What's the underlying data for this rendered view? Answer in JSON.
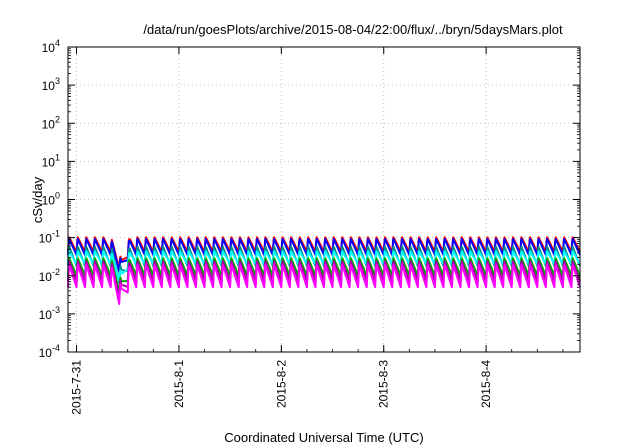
{
  "chart_data": {
    "type": "line",
    "title": "/data/run/goesPlots/archive/2015-08-04/22:00/flux/../bryn/5daysMars.plot",
    "xlabel": "Coordinated Universal Time (UTC)",
    "ylabel": "cSv/day",
    "yscale": "log",
    "ylim": [
      0.0001,
      10000
    ],
    "y_ticks": [
      {
        "base": "10",
        "exp": "-4",
        "value": 0.0001
      },
      {
        "base": "10",
        "exp": "-3",
        "value": 0.001
      },
      {
        "base": "10",
        "exp": "-2",
        "value": 0.01
      },
      {
        "base": "10",
        "exp": "-1",
        "value": 0.1
      },
      {
        "base": "10",
        "exp": "0",
        "value": 1
      },
      {
        "base": "10",
        "exp": "1",
        "value": 10
      },
      {
        "base": "10",
        "exp": "2",
        "value": 100
      },
      {
        "base": "10",
        "exp": "3",
        "value": 1000
      },
      {
        "base": "10",
        "exp": "4",
        "value": 10000
      }
    ],
    "xlim": [
      "2015-07-30 22:00",
      "2015-08-04 22:00"
    ],
    "x_ticks": [
      "2015-7-31",
      "2015-8-1",
      "2015-8-2",
      "2015-8-3",
      "2015-8-4"
    ],
    "x_tick_values": [
      "2015-07-31 00:00",
      "2015-08-01 00:00",
      "2015-08-02 00:00",
      "2015-08-03 00:00",
      "2015-08-04 00:00"
    ],
    "grid": true,
    "legend": "none",
    "oscillation_period_hours": 2,
    "dip": {
      "start": "2015-07-31 08:00",
      "end": "2015-07-31 12:30",
      "minimum_at": "2015-07-31 10:30"
    },
    "series": [
      {
        "color": "#ff0000",
        "peak": 0.105,
        "trough": 0.042
      },
      {
        "color": "#0000ff",
        "peak": 0.095,
        "trough": 0.035
      },
      {
        "color": "#008b8b",
        "peak": 0.06,
        "trough": 0.018
      },
      {
        "color": "#00ffff",
        "peak": 0.045,
        "trough": 0.02
      },
      {
        "color": "#00aa00",
        "peak": 0.03,
        "trough": 0.01
      },
      {
        "color": "#aa00aa",
        "peak": 0.025,
        "trough": 0.007
      },
      {
        "color": "#ff00ff",
        "peak": 0.02,
        "trough": 0.005
      }
    ]
  }
}
